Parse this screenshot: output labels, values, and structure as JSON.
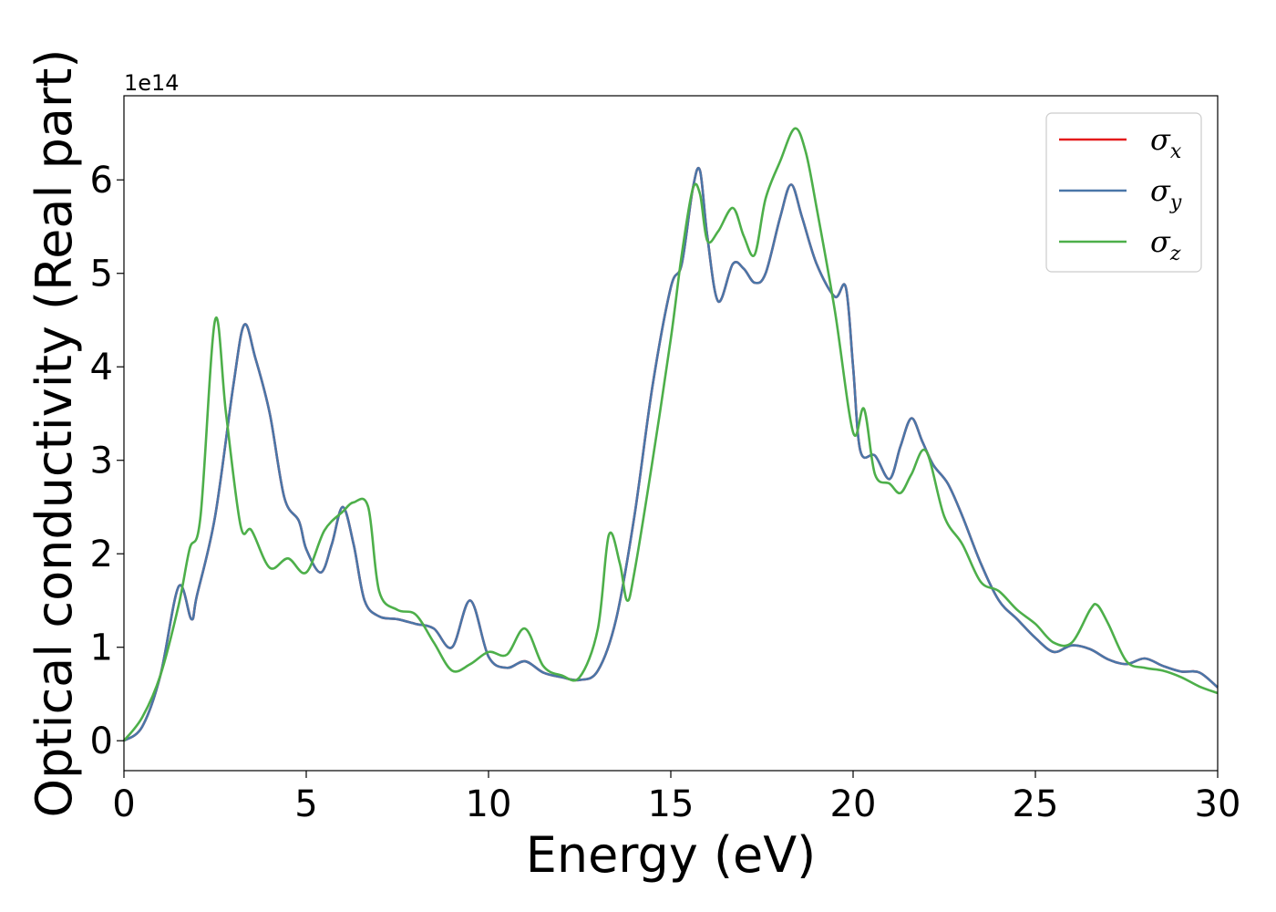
{
  "chart_data": {
    "type": "line",
    "title": "",
    "xlabel": "Energy (eV)",
    "ylabel": "Optical conductivity (Real part)",
    "y_offset_label": "1e14",
    "xlim": [
      0,
      30
    ],
    "ylim": [
      -0.32,
      6.9
    ],
    "xticks": [
      0,
      5,
      10,
      15,
      20,
      25,
      30
    ],
    "yticks": [
      0,
      1,
      2,
      3,
      4,
      5,
      6
    ],
    "grid": false,
    "legend_position": "top-right",
    "series": [
      {
        "name": "σx",
        "symbol": "σ",
        "sub": "x",
        "color": "#e41a1c",
        "x": [
          0,
          0.5,
          1,
          1.5,
          1.85,
          2,
          2.5,
          3,
          3.3,
          3.6,
          4,
          4.4,
          4.8,
          5,
          5.4,
          5.7,
          6,
          6.3,
          6.6,
          7,
          7.5,
          8,
          8.5,
          9,
          9.5,
          10,
          10.5,
          11,
          11.5,
          12,
          12.5,
          13,
          13.5,
          14,
          14.5,
          15,
          15.3,
          15.6,
          15.8,
          16,
          16.3,
          16.7,
          17,
          17.3,
          17.6,
          18,
          18.3,
          18.6,
          19,
          19.5,
          19.8,
          20,
          20.2,
          20.6,
          21,
          21.3,
          21.6,
          21.9,
          22.2,
          22.6,
          23,
          23.5,
          24,
          24.5,
          25,
          25.5,
          26,
          26.5,
          27,
          27.5,
          28,
          28.5,
          29,
          29.5,
          30
        ],
        "y": [
          0,
          0.15,
          0.7,
          1.65,
          1.3,
          1.55,
          2.4,
          3.8,
          4.45,
          4.1,
          3.5,
          2.6,
          2.35,
          2.05,
          1.8,
          2.1,
          2.5,
          2.1,
          1.5,
          1.33,
          1.3,
          1.25,
          1.2,
          1.0,
          1.5,
          0.9,
          0.78,
          0.85,
          0.73,
          0.68,
          0.65,
          0.75,
          1.3,
          2.4,
          3.8,
          4.85,
          5.1,
          5.9,
          6.1,
          5.4,
          4.7,
          5.1,
          5.05,
          4.9,
          5.0,
          5.6,
          5.95,
          5.6,
          5.1,
          4.75,
          4.85,
          4.0,
          3.1,
          3.05,
          2.8,
          3.15,
          3.45,
          3.2,
          2.95,
          2.75,
          2.4,
          1.9,
          1.5,
          1.3,
          1.1,
          0.95,
          1.02,
          0.98,
          0.87,
          0.82,
          0.88,
          0.8,
          0.74,
          0.73,
          0.57
        ]
      },
      {
        "name": "σy",
        "symbol": "σ",
        "sub": "y",
        "color": "#4a76a8",
        "x": [
          0,
          0.5,
          1,
          1.5,
          1.85,
          2,
          2.5,
          3,
          3.3,
          3.6,
          4,
          4.4,
          4.8,
          5,
          5.4,
          5.7,
          6,
          6.3,
          6.6,
          7,
          7.5,
          8,
          8.5,
          9,
          9.5,
          10,
          10.5,
          11,
          11.5,
          12,
          12.5,
          13,
          13.5,
          14,
          14.5,
          15,
          15.3,
          15.6,
          15.8,
          16,
          16.3,
          16.7,
          17,
          17.3,
          17.6,
          18,
          18.3,
          18.6,
          19,
          19.5,
          19.8,
          20,
          20.2,
          20.6,
          21,
          21.3,
          21.6,
          21.9,
          22.2,
          22.6,
          23,
          23.5,
          24,
          24.5,
          25,
          25.5,
          26,
          26.5,
          27,
          27.5,
          28,
          28.5,
          29,
          29.5,
          30
        ],
        "y": [
          0,
          0.15,
          0.7,
          1.65,
          1.3,
          1.55,
          2.4,
          3.8,
          4.45,
          4.1,
          3.5,
          2.6,
          2.35,
          2.05,
          1.8,
          2.1,
          2.5,
          2.1,
          1.5,
          1.33,
          1.3,
          1.25,
          1.2,
          1.0,
          1.5,
          0.9,
          0.78,
          0.85,
          0.73,
          0.68,
          0.65,
          0.75,
          1.3,
          2.4,
          3.8,
          4.85,
          5.1,
          5.9,
          6.1,
          5.4,
          4.7,
          5.1,
          5.05,
          4.9,
          5.0,
          5.6,
          5.95,
          5.6,
          5.1,
          4.75,
          4.85,
          4.0,
          3.1,
          3.05,
          2.8,
          3.15,
          3.45,
          3.2,
          2.95,
          2.75,
          2.4,
          1.9,
          1.5,
          1.3,
          1.1,
          0.95,
          1.02,
          0.98,
          0.87,
          0.82,
          0.88,
          0.8,
          0.74,
          0.73,
          0.57
        ]
      },
      {
        "name": "σz",
        "symbol": "σ",
        "sub": "z",
        "color": "#4daf4a",
        "x": [
          0,
          0.5,
          1,
          1.5,
          1.8,
          2.1,
          2.5,
          2.8,
          3.2,
          3.5,
          4,
          4.5,
          5,
          5.5,
          6,
          6.3,
          6.7,
          7,
          7.5,
          8,
          8.5,
          9,
          9.5,
          10,
          10.5,
          11,
          11.5,
          12,
          12.5,
          13,
          13.3,
          13.6,
          13.8,
          14,
          14.5,
          15,
          15.3,
          15.6,
          15.8,
          16,
          16.3,
          16.7,
          17,
          17.3,
          17.6,
          18,
          18.4,
          18.7,
          19,
          19.5,
          20,
          20.3,
          20.6,
          21,
          21.3,
          21.6,
          22,
          22.5,
          23,
          23.5,
          24,
          24.5,
          25,
          25.5,
          26,
          26.5,
          26.7,
          27,
          27.5,
          28,
          28.5,
          29,
          29.5,
          30
        ],
        "y": [
          0,
          0.25,
          0.7,
          1.45,
          2.05,
          2.4,
          4.5,
          3.5,
          2.3,
          2.25,
          1.85,
          1.95,
          1.8,
          2.25,
          2.45,
          2.55,
          2.5,
          1.6,
          1.4,
          1.35,
          1.05,
          0.75,
          0.82,
          0.95,
          0.92,
          1.2,
          0.8,
          0.7,
          0.68,
          1.2,
          2.2,
          1.9,
          1.5,
          1.8,
          3.0,
          4.3,
          5.2,
          5.9,
          5.85,
          5.35,
          5.45,
          5.7,
          5.4,
          5.2,
          5.8,
          6.2,
          6.55,
          6.3,
          5.7,
          4.6,
          3.3,
          3.55,
          2.85,
          2.75,
          2.65,
          2.85,
          3.1,
          2.4,
          2.1,
          1.7,
          1.6,
          1.4,
          1.25,
          1.05,
          1.05,
          1.4,
          1.45,
          1.25,
          0.85,
          0.78,
          0.75,
          0.68,
          0.58,
          0.51
        ]
      }
    ]
  }
}
